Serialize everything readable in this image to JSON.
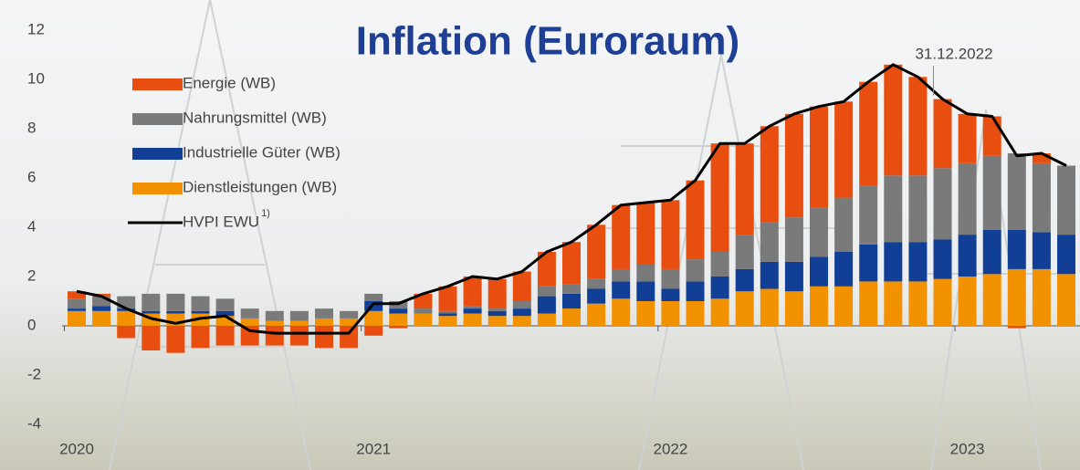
{
  "chart_data": {
    "type": "bar",
    "title": "Inflation (Euroraum)",
    "annotation": "31.12.2022",
    "annotation_index": 35,
    "categories": [
      "2020",
      null,
      null,
      null,
      null,
      null,
      null,
      null,
      null,
      null,
      null,
      null,
      "2021",
      null,
      null,
      null,
      null,
      null,
      null,
      null,
      null,
      null,
      null,
      null,
      "2022",
      null,
      null,
      null,
      null,
      null,
      null,
      null,
      null,
      null,
      null,
      null,
      "2023",
      null,
      null,
      null,
      null
    ],
    "ylim": [
      -4,
      12
    ],
    "yticks": [
      -4,
      -2,
      0,
      2,
      4,
      6,
      8,
      10,
      12
    ],
    "series": [
      {
        "name": "Dienstleistungen (WB)",
        "color": "#f39200",
        "type": "bar",
        "values": [
          0.6,
          0.6,
          0.6,
          0.5,
          0.5,
          0.5,
          0.4,
          0.3,
          0.2,
          0.2,
          0.3,
          0.3,
          0.6,
          0.5,
          0.5,
          0.4,
          0.5,
          0.4,
          0.4,
          0.5,
          0.7,
          0.9,
          1.1,
          1.0,
          1.0,
          1.0,
          1.1,
          1.4,
          1.5,
          1.4,
          1.6,
          1.6,
          1.8,
          1.8,
          1.8,
          1.9,
          2.0,
          2.1,
          2.3,
          2.3,
          2.1
        ]
      },
      {
        "name": "Industrielle Güter (WB)",
        "color": "#123f96",
        "type": "bar",
        "values": [
          0.1,
          0.2,
          0.1,
          0.1,
          0.1,
          0.1,
          0.2,
          0.0,
          0.0,
          0.0,
          0.0,
          0.0,
          0.4,
          0.2,
          0.0,
          0.1,
          0.2,
          0.2,
          0.3,
          0.7,
          0.6,
          0.6,
          0.7,
          0.8,
          0.5,
          0.8,
          0.9,
          0.9,
          1.1,
          1.2,
          1.2,
          1.4,
          1.5,
          1.6,
          1.6,
          1.6,
          1.7,
          1.8,
          1.6,
          1.5,
          1.6
        ]
      },
      {
        "name": "Nahrungsmittel (WB)",
        "color": "#7a7a7a",
        "type": "bar",
        "values": [
          0.4,
          0.4,
          0.5,
          0.7,
          0.7,
          0.6,
          0.5,
          0.4,
          0.4,
          0.4,
          0.4,
          0.3,
          0.3,
          0.3,
          0.2,
          0.1,
          0.1,
          0.1,
          0.3,
          0.4,
          0.4,
          0.4,
          0.5,
          0.7,
          0.8,
          0.9,
          1.0,
          1.4,
          1.6,
          1.8,
          2.0,
          2.2,
          2.4,
          2.7,
          2.7,
          2.9,
          2.9,
          3.0,
          3.1,
          2.8,
          2.8
        ]
      },
      {
        "name": "Energie (WB)",
        "color": "#e84e0f",
        "type": "bar",
        "values": [
          0.3,
          0.1,
          -0.5,
          -1.0,
          -1.1,
          -0.9,
          -0.8,
          -0.8,
          -0.8,
          -0.8,
          -0.9,
          -0.9,
          -0.4,
          -0.1,
          0.6,
          1.0,
          1.2,
          1.2,
          1.2,
          1.4,
          1.7,
          2.2,
          2.6,
          2.5,
          2.8,
          3.2,
          4.4,
          3.7,
          3.9,
          4.2,
          4.1,
          3.9,
          4.2,
          4.5,
          4.0,
          2.8,
          2.0,
          1.6,
          -0.1,
          0.4,
          0.0
        ]
      },
      {
        "name": "HVPI EWU",
        "name_note": "1)",
        "color": "#000000",
        "type": "line",
        "values": [
          1.4,
          1.2,
          0.7,
          0.3,
          0.1,
          0.3,
          0.4,
          -0.2,
          -0.3,
          -0.3,
          -0.3,
          -0.3,
          0.9,
          0.9,
          1.3,
          1.6,
          2.0,
          1.9,
          2.2,
          3.0,
          3.4,
          4.1,
          4.9,
          5.0,
          5.1,
          5.9,
          7.4,
          7.4,
          8.1,
          8.6,
          8.9,
          9.1,
          9.9,
          10.6,
          10.1,
          9.2,
          8.6,
          8.5,
          6.9,
          7.0,
          6.5
        ]
      }
    ]
  }
}
